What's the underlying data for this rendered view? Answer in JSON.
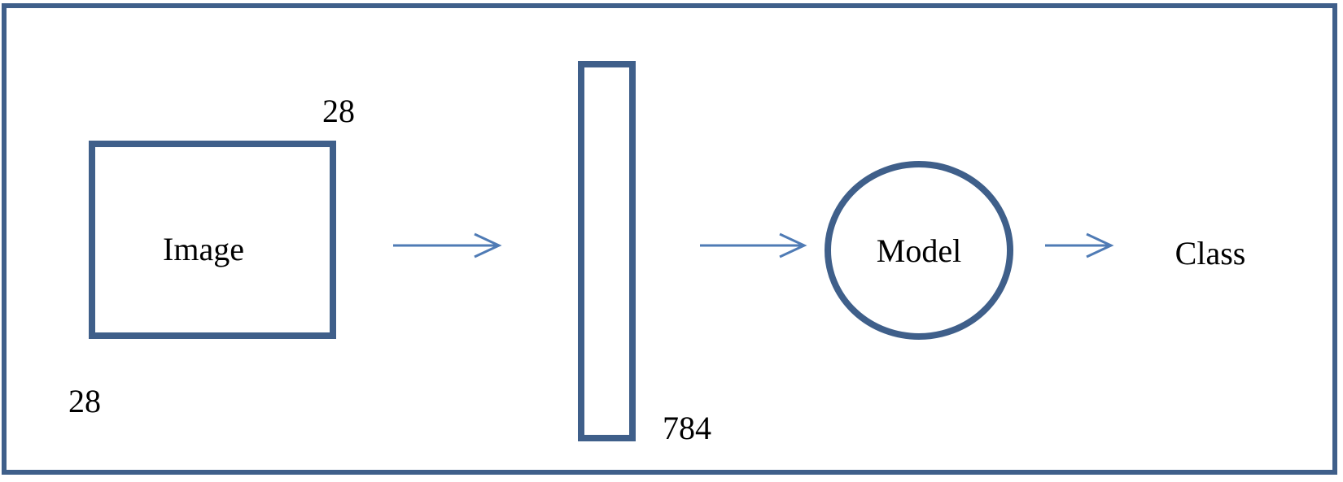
{
  "colors": {
    "shape_stroke": "#3F5F8A",
    "arrow_stroke": "#4F7BB5",
    "text": "#000000",
    "background": "#FFFFFF"
  },
  "image_block": {
    "label": "Image",
    "width_label": "28",
    "height_label": "28"
  },
  "vector_block": {
    "length_label": "784"
  },
  "model_block": {
    "label": "Model"
  },
  "output": {
    "label": "Class"
  }
}
